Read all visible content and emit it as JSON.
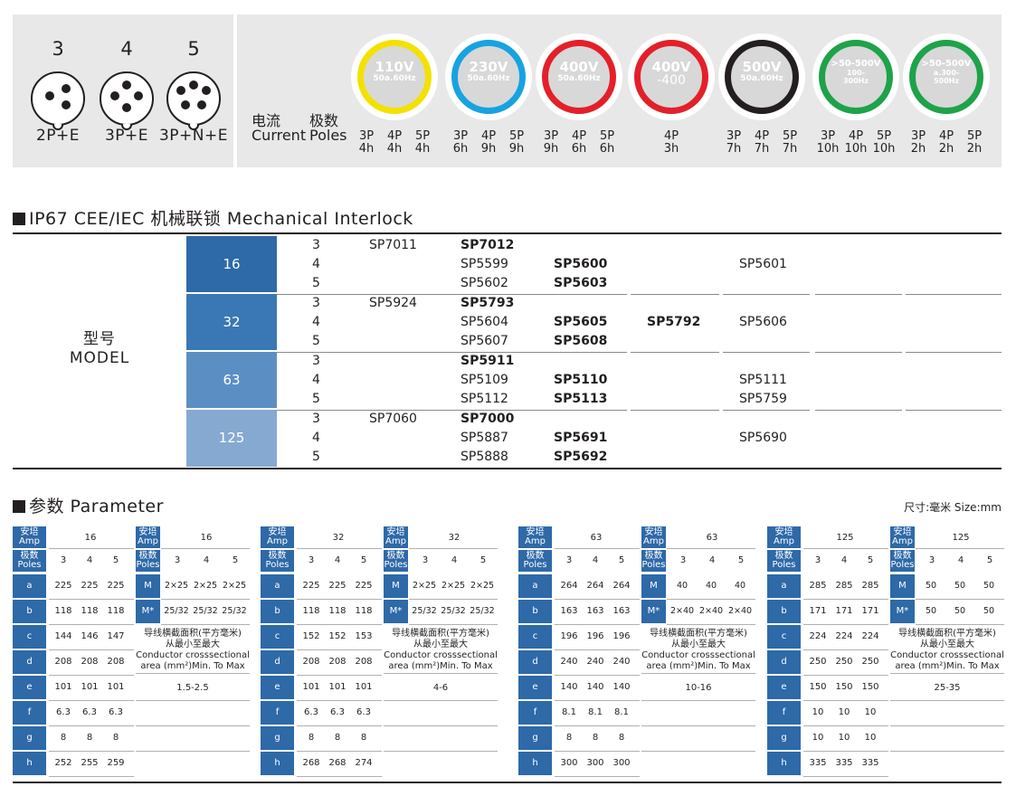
{
  "pin_configs": [
    {
      "number": "3",
      "label": "2P+E"
    },
    {
      "number": "4",
      "label": "3P+E"
    },
    {
      "number": "5",
      "label": "3P+N+E"
    }
  ],
  "current": {
    "zh_current": "电流",
    "zh_poles": "极数",
    "en_current": "Current",
    "en_poles": "Poles"
  },
  "voltage_rings": [
    {
      "voltage": "110V",
      "freq": "50a.60Hz",
      "color": "#f4e100",
      "poles": [
        [
          "3P",
          "4h"
        ],
        [
          "4P",
          "4h"
        ],
        [
          "5P",
          "4h"
        ]
      ]
    },
    {
      "voltage": "230V",
      "freq": "50a.60Hz",
      "color": "#17a3e0",
      "poles": [
        [
          "3P",
          "6h"
        ],
        [
          "4P",
          "9h"
        ],
        [
          "5P",
          "9h"
        ]
      ]
    },
    {
      "voltage": "400V",
      "freq": "50a.60Hz",
      "color": "#e3202a",
      "poles": [
        [
          "3P",
          "9h"
        ],
        [
          "4P",
          "6h"
        ],
        [
          "5P",
          "6h"
        ]
      ]
    },
    {
      "voltage": "400V",
      "freq": "-400",
      "color": "#e3202a",
      "poles": [
        [
          "4P",
          "3h"
        ]
      ]
    },
    {
      "voltage": "500V",
      "freq": "50a.60Hz",
      "color": "#231f20",
      "poles": [
        [
          "3P",
          "7h"
        ],
        [
          "4P",
          "7h"
        ],
        [
          "5P",
          "7h"
        ]
      ]
    },
    {
      "voltage": ">50-500V",
      "freq": "100-\n300Hz",
      "color": "#1ea24a",
      "poles": [
        [
          "3P",
          "10h"
        ],
        [
          "4P",
          "10h"
        ],
        [
          "5P",
          "10h"
        ]
      ]
    },
    {
      "voltage": ">50-500V",
      "freq": "a.300-\n500Hz",
      "color": "#1ea24a",
      "poles": [
        [
          "3P",
          "2h"
        ],
        [
          "4P",
          "2h"
        ],
        [
          "5P",
          "2h"
        ]
      ]
    }
  ],
  "interlock": {
    "title": "IP67 CEE/IEC 机械联锁  Mechanical Interlock",
    "model_zh": "型号",
    "model_en": "MODEL",
    "groups": [
      {
        "amp": "16",
        "color": "#2e69a8",
        "rows": [
          {
            "pole": "3",
            "c1": "SP7011",
            "c2": "SP7012",
            "c3": "",
            "c4": "",
            "c5": ""
          },
          {
            "pole": "4",
            "c1": "",
            "c2": "SP5599",
            "c3": "SP5600",
            "c4": "",
            "c5": "SP5601"
          },
          {
            "pole": "5",
            "c1": "",
            "c2": "SP5602",
            "c3": "SP5603",
            "c4": "",
            "c5": ""
          }
        ]
      },
      {
        "amp": "32",
        "color": "#3a78b5",
        "rows": [
          {
            "pole": "3",
            "c1": "SP5924",
            "c2": "SP5793",
            "c3": "",
            "c4": "",
            "c5": ""
          },
          {
            "pole": "4",
            "c1": "",
            "c2": "SP5604",
            "c3": "SP5605",
            "c4": "SP5792",
            "c5": "SP5606"
          },
          {
            "pole": "5",
            "c1": "",
            "c2": "SP5607",
            "c3": "SP5608",
            "c4": "",
            "c5": ""
          }
        ]
      },
      {
        "amp": "63",
        "color": "#5b8fc3",
        "rows": [
          {
            "pole": "3",
            "c1": "",
            "c2": "SP5911",
            "c3": "",
            "c4": "",
            "c5": ""
          },
          {
            "pole": "4",
            "c1": "",
            "c2": "SP5109",
            "c3": "SP5110",
            "c4": "",
            "c5": "SP5111"
          },
          {
            "pole": "5",
            "c1": "",
            "c2": "SP5112",
            "c3": "SP5113",
            "c4": "",
            "c5": "SP5759"
          }
        ]
      },
      {
        "amp": "125",
        "color": "#86a9d2",
        "rows": [
          {
            "pole": "3",
            "c1": "SP7060",
            "c2": "SP7000",
            "c3": "",
            "c4": "",
            "c5": ""
          },
          {
            "pole": "4",
            "c1": "",
            "c2": "SP5887",
            "c3": "SP5691",
            "c4": "",
            "c5": "SP5690"
          },
          {
            "pole": "5",
            "c1": "",
            "c2": "SP5888",
            "c3": "SP5692",
            "c4": "",
            "c5": ""
          }
        ]
      }
    ]
  },
  "parameter": {
    "title": "参数 Parameter",
    "size_note": "尺寸:毫米  Size:mm",
    "amp_header_zh": "安培",
    "amp_header_en": "Amp",
    "poles_header_zh": "极数",
    "poles_header_en": "Poles",
    "poles": [
      "3",
      "4",
      "5"
    ],
    "conductor_zh1": "导线横截面积(平方毫米)",
    "conductor_zh2": "从最小至最大",
    "conductor_en1": "Conductor crosssectional",
    "conductor_en2": "area (mm²)Min. To Max",
    "tables": [
      {
        "amp": "16",
        "dims": [
          [
            "a",
            "225",
            "225",
            "225"
          ],
          [
            "b",
            "118",
            "118",
            "118"
          ],
          [
            "c",
            "144",
            "146",
            "147"
          ],
          [
            "d",
            "208",
            "208",
            "208"
          ],
          [
            "e",
            "101",
            "101",
            "101"
          ],
          [
            "f",
            "6.3",
            "6.3",
            "6.3"
          ],
          [
            "g",
            "8",
            "8",
            "8"
          ],
          [
            "h",
            "252",
            "255",
            "259"
          ]
        ],
        "m": [
          "M",
          "2×25",
          "2×25",
          "2×25"
        ],
        "mstar": [
          "M*",
          "25/32",
          "25/32",
          "25/32"
        ],
        "conductor": "1.5-2.5"
      },
      {
        "amp": "32",
        "dims": [
          [
            "a",
            "225",
            "225",
            "225"
          ],
          [
            "b",
            "118",
            "118",
            "118"
          ],
          [
            "c",
            "152",
            "152",
            "153"
          ],
          [
            "d",
            "208",
            "208",
            "208"
          ],
          [
            "e",
            "101",
            "101",
            "101"
          ],
          [
            "f",
            "6.3",
            "6.3",
            "6.3"
          ],
          [
            "g",
            "8",
            "8",
            "8"
          ],
          [
            "h",
            "268",
            "268",
            "274"
          ]
        ],
        "m": [
          "M",
          "2×25",
          "2×25",
          "2×25"
        ],
        "mstar": [
          "M*",
          "25/32",
          "25/32",
          "25/32"
        ],
        "conductor": "4-6"
      },
      {
        "amp": "63",
        "dims": [
          [
            "a",
            "264",
            "264",
            "264"
          ],
          [
            "b",
            "163",
            "163",
            "163"
          ],
          [
            "c",
            "196",
            "196",
            "196"
          ],
          [
            "d",
            "240",
            "240",
            "240"
          ],
          [
            "e",
            "140",
            "140",
            "140"
          ],
          [
            "f",
            "8.1",
            "8.1",
            "8.1"
          ],
          [
            "g",
            "8",
            "8",
            "8"
          ],
          [
            "h",
            "300",
            "300",
            "300"
          ]
        ],
        "m": [
          "M",
          "40",
          "40",
          "40"
        ],
        "mstar": [
          "M*",
          "2×40",
          "2×40",
          "2×40"
        ],
        "conductor": "10-16"
      },
      {
        "amp": "125",
        "dims": [
          [
            "a",
            "285",
            "285",
            "285"
          ],
          [
            "b",
            "171",
            "171",
            "171"
          ],
          [
            "c",
            "224",
            "224",
            "224"
          ],
          [
            "d",
            "250",
            "250",
            "250"
          ],
          [
            "e",
            "150",
            "150",
            "150"
          ],
          [
            "f",
            "10",
            "10",
            "10"
          ],
          [
            "g",
            "10",
            "10",
            "10"
          ],
          [
            "h",
            "335",
            "335",
            "335"
          ]
        ],
        "m": [
          "M",
          "50",
          "50",
          "50"
        ],
        "mstar": [
          "M*",
          "50",
          "50",
          "50"
        ],
        "conductor": "25-35"
      }
    ]
  }
}
